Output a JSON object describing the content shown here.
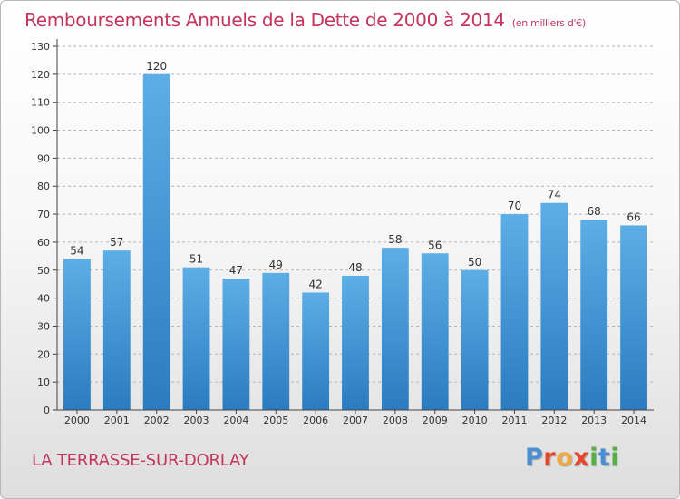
{
  "header": {
    "title": "Remboursements Annuels de la Dette de 2000 à 2014",
    "subtitle": "(en milliers d'€)"
  },
  "footer": {
    "city": "LA TERRASSE-SUR-DORLAY",
    "logo_letters": [
      "P",
      "r",
      "o",
      "x",
      "i",
      "t",
      "i"
    ]
  },
  "colors": {
    "title": "#c4345e",
    "bar_light": "#5dade6",
    "bar_dark": "#2a7cbf",
    "logo": [
      "#4a8fd4",
      "#e8452c",
      "#f2a93b",
      "#e8452c",
      "#57b046",
      "#4a8fd4",
      "#57b046"
    ]
  },
  "chart_data": {
    "type": "bar",
    "title": "Remboursements Annuels de la Dette de 2000 à 2014",
    "xlabel": "",
    "ylabel": "",
    "ylim": [
      0,
      130
    ],
    "yticks": [
      0,
      10,
      20,
      30,
      40,
      50,
      60,
      70,
      80,
      90,
      100,
      110,
      120,
      130
    ],
    "grid": true,
    "categories": [
      "2000",
      "2001",
      "2002",
      "2003",
      "2004",
      "2005",
      "2006",
      "2007",
      "2008",
      "2009",
      "2010",
      "2011",
      "2012",
      "2013",
      "2014"
    ],
    "values": [
      54,
      57,
      120,
      51,
      47,
      49,
      42,
      48,
      58,
      56,
      50,
      70,
      74,
      68,
      66
    ]
  }
}
